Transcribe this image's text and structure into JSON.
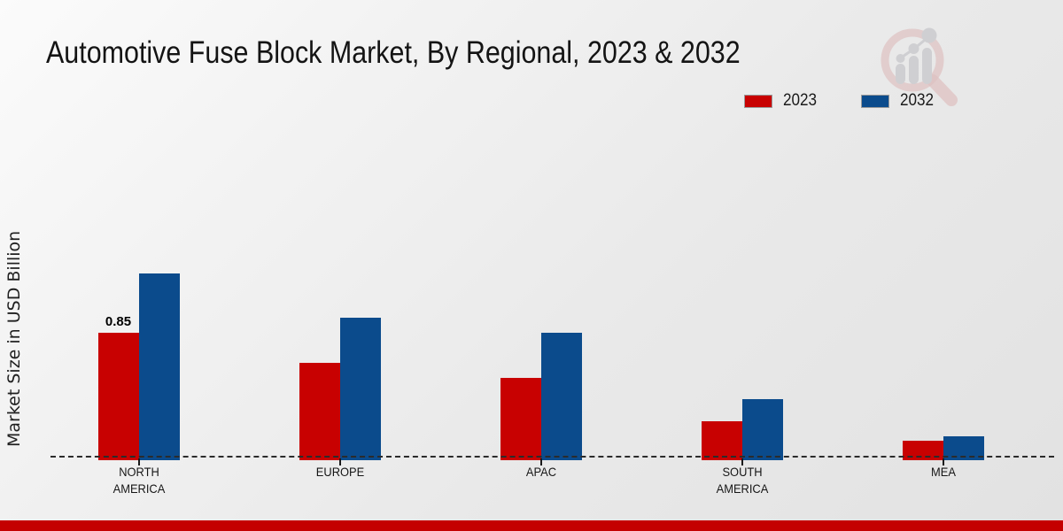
{
  "header": {
    "title": "Automotive Fuse Block Market, By Regional, 2023 & 2032"
  },
  "axis": {
    "y_label": "Market Size in USD Billion"
  },
  "legend": {
    "items": [
      {
        "label": "2023",
        "color": "#c80101"
      },
      {
        "label": "2032",
        "color": "#0b4b8c"
      }
    ]
  },
  "footer": {
    "accent_color": "#c40000"
  },
  "watermark": {
    "name": "magnifier-bar-chart-logo",
    "ring_color": "#dcb9b9",
    "glyph_color": "#c9c9cd"
  },
  "chart_data": {
    "type": "bar",
    "title": "Automotive Fuse Block Market, By Regional, 2023 & 2032",
    "xlabel": "",
    "ylabel": "Market Size in USD Billion",
    "categories": [
      "NORTH AMERICA",
      "EUROPE",
      "APAC",
      "SOUTH AMERICA",
      "MEA"
    ],
    "series": [
      {
        "name": "2023",
        "color": "#c80101",
        "values": [
          0.85,
          0.65,
          0.55,
          0.26,
          0.13
        ]
      },
      {
        "name": "2032",
        "color": "#0b4b8c",
        "values": [
          1.25,
          0.95,
          0.85,
          0.41,
          0.16
        ]
      }
    ],
    "data_labels": [
      {
        "series_index": 0,
        "category_index": 0,
        "text": "0.85"
      }
    ],
    "ylim": [
      0,
      1.4
    ],
    "grid": false,
    "y_ticks_visible": false,
    "baseline_style": "dashed",
    "legend_position": "top-right"
  }
}
